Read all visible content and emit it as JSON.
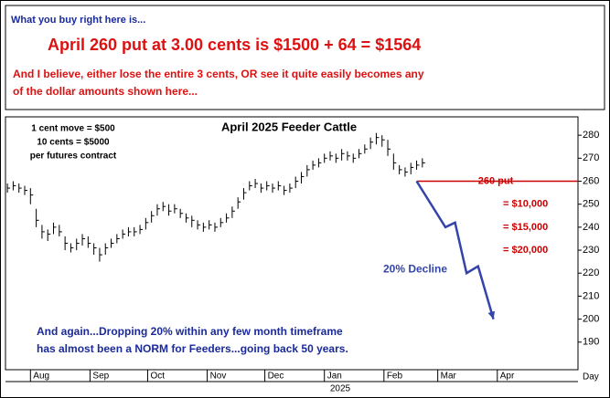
{
  "header": {
    "intro": "What you buy right here is...",
    "headline": "April 260 put at 3.00 cents is $1500 + 64 = $1564",
    "note_line1": "And I believe, either lose the entire 3 cents, OR see it quite easily becomes any",
    "note_line2": "of the dollar amounts shown here..."
  },
  "chart_data": {
    "type": "ohlc",
    "title": "April 2025 Feeder Cattle",
    "contract_notes": [
      "1 cent move = $500",
      "10 cents = $5000",
      "per futures contract"
    ],
    "x_label": "Day",
    "year_label": "2025",
    "x": [
      -12,
      -9,
      -6,
      -3,
      0,
      3,
      6,
      9,
      12,
      15,
      18,
      21,
      24,
      27,
      30,
      33,
      36,
      39,
      42,
      45,
      48,
      51,
      54,
      57,
      60,
      63,
      66,
      69,
      72,
      75,
      78,
      81,
      84,
      87,
      90,
      93,
      96,
      99,
      102,
      105,
      108,
      111,
      114,
      117,
      120,
      123,
      126,
      129,
      132,
      135,
      138,
      141,
      144,
      147,
      150,
      153,
      156,
      159,
      162,
      165,
      168,
      171,
      174,
      177,
      180,
      183,
      186,
      189,
      192,
      195,
      198,
      201,
      204
    ],
    "close": [
      257,
      258,
      257,
      256,
      254,
      243,
      238,
      237,
      240,
      238,
      233,
      231,
      233,
      235,
      233,
      231,
      228,
      231,
      233,
      235,
      237,
      238,
      238,
      239,
      242,
      245,
      248,
      249,
      247,
      248,
      246,
      244,
      243,
      241,
      240,
      241,
      240,
      242,
      244,
      247,
      251,
      255,
      258,
      259,
      257,
      258,
      257,
      258,
      256,
      257,
      260,
      262,
      265,
      267,
      268,
      270,
      271,
      270,
      272,
      271,
      270,
      272,
      274,
      277,
      279,
      278,
      274,
      268,
      265,
      264,
      266,
      267,
      268
    ],
    "high": [
      259,
      260,
      259,
      258,
      257,
      248,
      241,
      239,
      242,
      241,
      236,
      233,
      235,
      237,
      236,
      233,
      231,
      233,
      235,
      237,
      239,
      240,
      240,
      241,
      244,
      247,
      250,
      251,
      250,
      250,
      248,
      246,
      245,
      243,
      242,
      243,
      242,
      244,
      246,
      249,
      253,
      257,
      260,
      261,
      259,
      260,
      259,
      260,
      258,
      259,
      262,
      264,
      267,
      269,
      270,
      272,
      273,
      272,
      274,
      273,
      272,
      274,
      276,
      279,
      281,
      280,
      278,
      272,
      267,
      266,
      268,
      269,
      270
    ],
    "low": [
      255,
      256,
      255,
      254,
      250,
      240,
      235,
      234,
      237,
      236,
      230,
      229,
      230,
      232,
      231,
      228,
      225,
      228,
      231,
      233,
      235,
      236,
      236,
      237,
      239,
      242,
      245,
      247,
      245,
      246,
      244,
      242,
      240,
      239,
      238,
      239,
      238,
      240,
      242,
      244,
      248,
      252,
      256,
      257,
      255,
      256,
      255,
      256,
      254,
      255,
      257,
      259,
      262,
      265,
      266,
      268,
      269,
      268,
      269,
      269,
      268,
      270,
      272,
      274,
      276,
      275,
      271,
      265,
      263,
      262,
      263,
      265,
      266
    ],
    "color": "#000000",
    "xlim": [
      -13,
      285
    ],
    "xticks": [
      {
        "value": 0,
        "label": "Aug"
      },
      {
        "value": 31,
        "label": "Sep"
      },
      {
        "value": 61,
        "label": "Oct"
      },
      {
        "value": 92,
        "label": "Nov"
      },
      {
        "value": 122,
        "label": "Dec"
      },
      {
        "value": 153,
        "label": "Jan"
      },
      {
        "value": 184,
        "label": "Feb"
      },
      {
        "value": 212,
        "label": "Mar"
      },
      {
        "value": 243,
        "label": "Apr"
      }
    ],
    "ylim": [
      178,
      288
    ],
    "yticks": [
      190,
      200,
      210,
      220,
      230,
      240,
      250,
      260,
      270,
      280
    ],
    "put_line": {
      "label": "260 put",
      "value": 260,
      "color": "#cc0000"
    },
    "projection": {
      "label": "20% Decline",
      "x": [
        201,
        216,
        221,
        227,
        233,
        241
      ],
      "y": [
        260,
        240,
        242,
        220,
        223,
        200
      ],
      "color": "#3344aa"
    },
    "dollar_labels": [
      {
        "label": "= $10,000",
        "value": 250
      },
      {
        "label": "= $15,000",
        "value": 240
      },
      {
        "label": "= $20,000",
        "value": 230
      }
    ],
    "footnote": [
      "And again...Dropping 20% within any few month timeframe",
      "has almost been a NORM for Feeders...going back 50 years."
    ]
  }
}
